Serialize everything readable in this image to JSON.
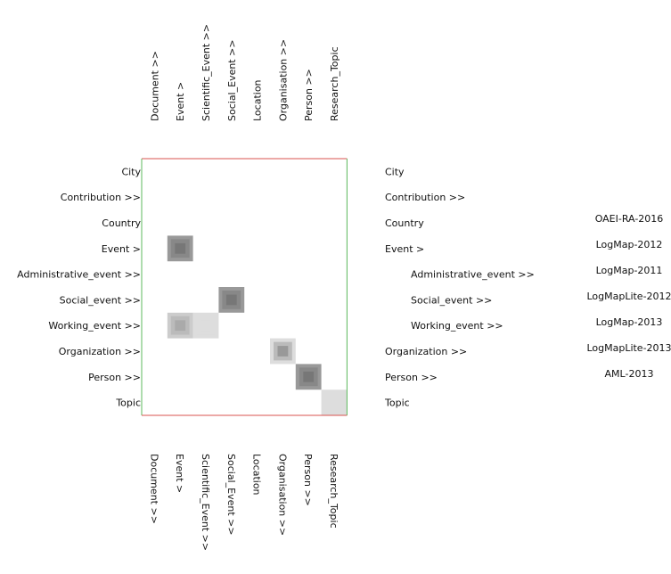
{
  "columns": [
    "Document  >>",
    "Event  >",
    "Scientific_Event  >>",
    "Social_Event  >>",
    "Location",
    "Organisation  >>",
    "Person  >>",
    "Research_Topic"
  ],
  "rows": [
    {
      "label": "City",
      "right_label": "City",
      "level": 0
    },
    {
      "label": "Contribution  >>",
      "right_label": "Contribution  >>",
      "level": 0
    },
    {
      "label": "Country",
      "right_label": "Country",
      "level": 0
    },
    {
      "label": "Event  >",
      "right_label": "Event  >",
      "level": 0
    },
    {
      "label": "Administrative_event  >>",
      "right_label": "Administrative_event  >>",
      "level": 1
    },
    {
      "label": "Social_event  >>",
      "right_label": "Social_event  >>",
      "level": 1
    },
    {
      "label": "Working_event  >>",
      "right_label": "Working_event  >>",
      "level": 1
    },
    {
      "label": "Organization  >>",
      "right_label": "Organization  >>",
      "level": 0
    },
    {
      "label": "Person  >>",
      "right_label": "Person  >>",
      "level": 0
    },
    {
      "label": "Topic",
      "right_label": "Topic",
      "level": 0
    }
  ],
  "systems": [
    "OAEI-RA-2016",
    "LogMap-2012",
    "LogMap-2011",
    "LogMapLite-2012",
    "LogMap-2013",
    "LogMapLite-2013",
    "AML-2013"
  ],
  "cells": [
    {
      "row": 3,
      "col": 1,
      "outer": "#999999",
      "mid": "#888888",
      "inner": "#777777"
    },
    {
      "row": 5,
      "col": 3,
      "outer": "#999999",
      "mid": "#888888",
      "inner": "#777777"
    },
    {
      "row": 6,
      "col": 1,
      "outer": "#cccccc",
      "mid": "#bbbbbb",
      "inner": "#aaaaaa"
    },
    {
      "row": 6,
      "col": 2,
      "outer": "#dddddd",
      "mid": "#dddddd",
      "inner": "#dddddd"
    },
    {
      "row": 7,
      "col": 5,
      "outer": "#dddddd",
      "mid": "#bbbbbb",
      "inner": "#999999"
    },
    {
      "row": 8,
      "col": 6,
      "outer": "#999999",
      "mid": "#888888",
      "inner": "#777777"
    },
    {
      "row": 9,
      "col": 7,
      "outer": "#dddddd",
      "mid": "#dddddd",
      "inner": "#dddddd"
    }
  ],
  "colors": {
    "frame_top_left": "#d9534f",
    "frame_right_bottom": "#5cb85c"
  }
}
